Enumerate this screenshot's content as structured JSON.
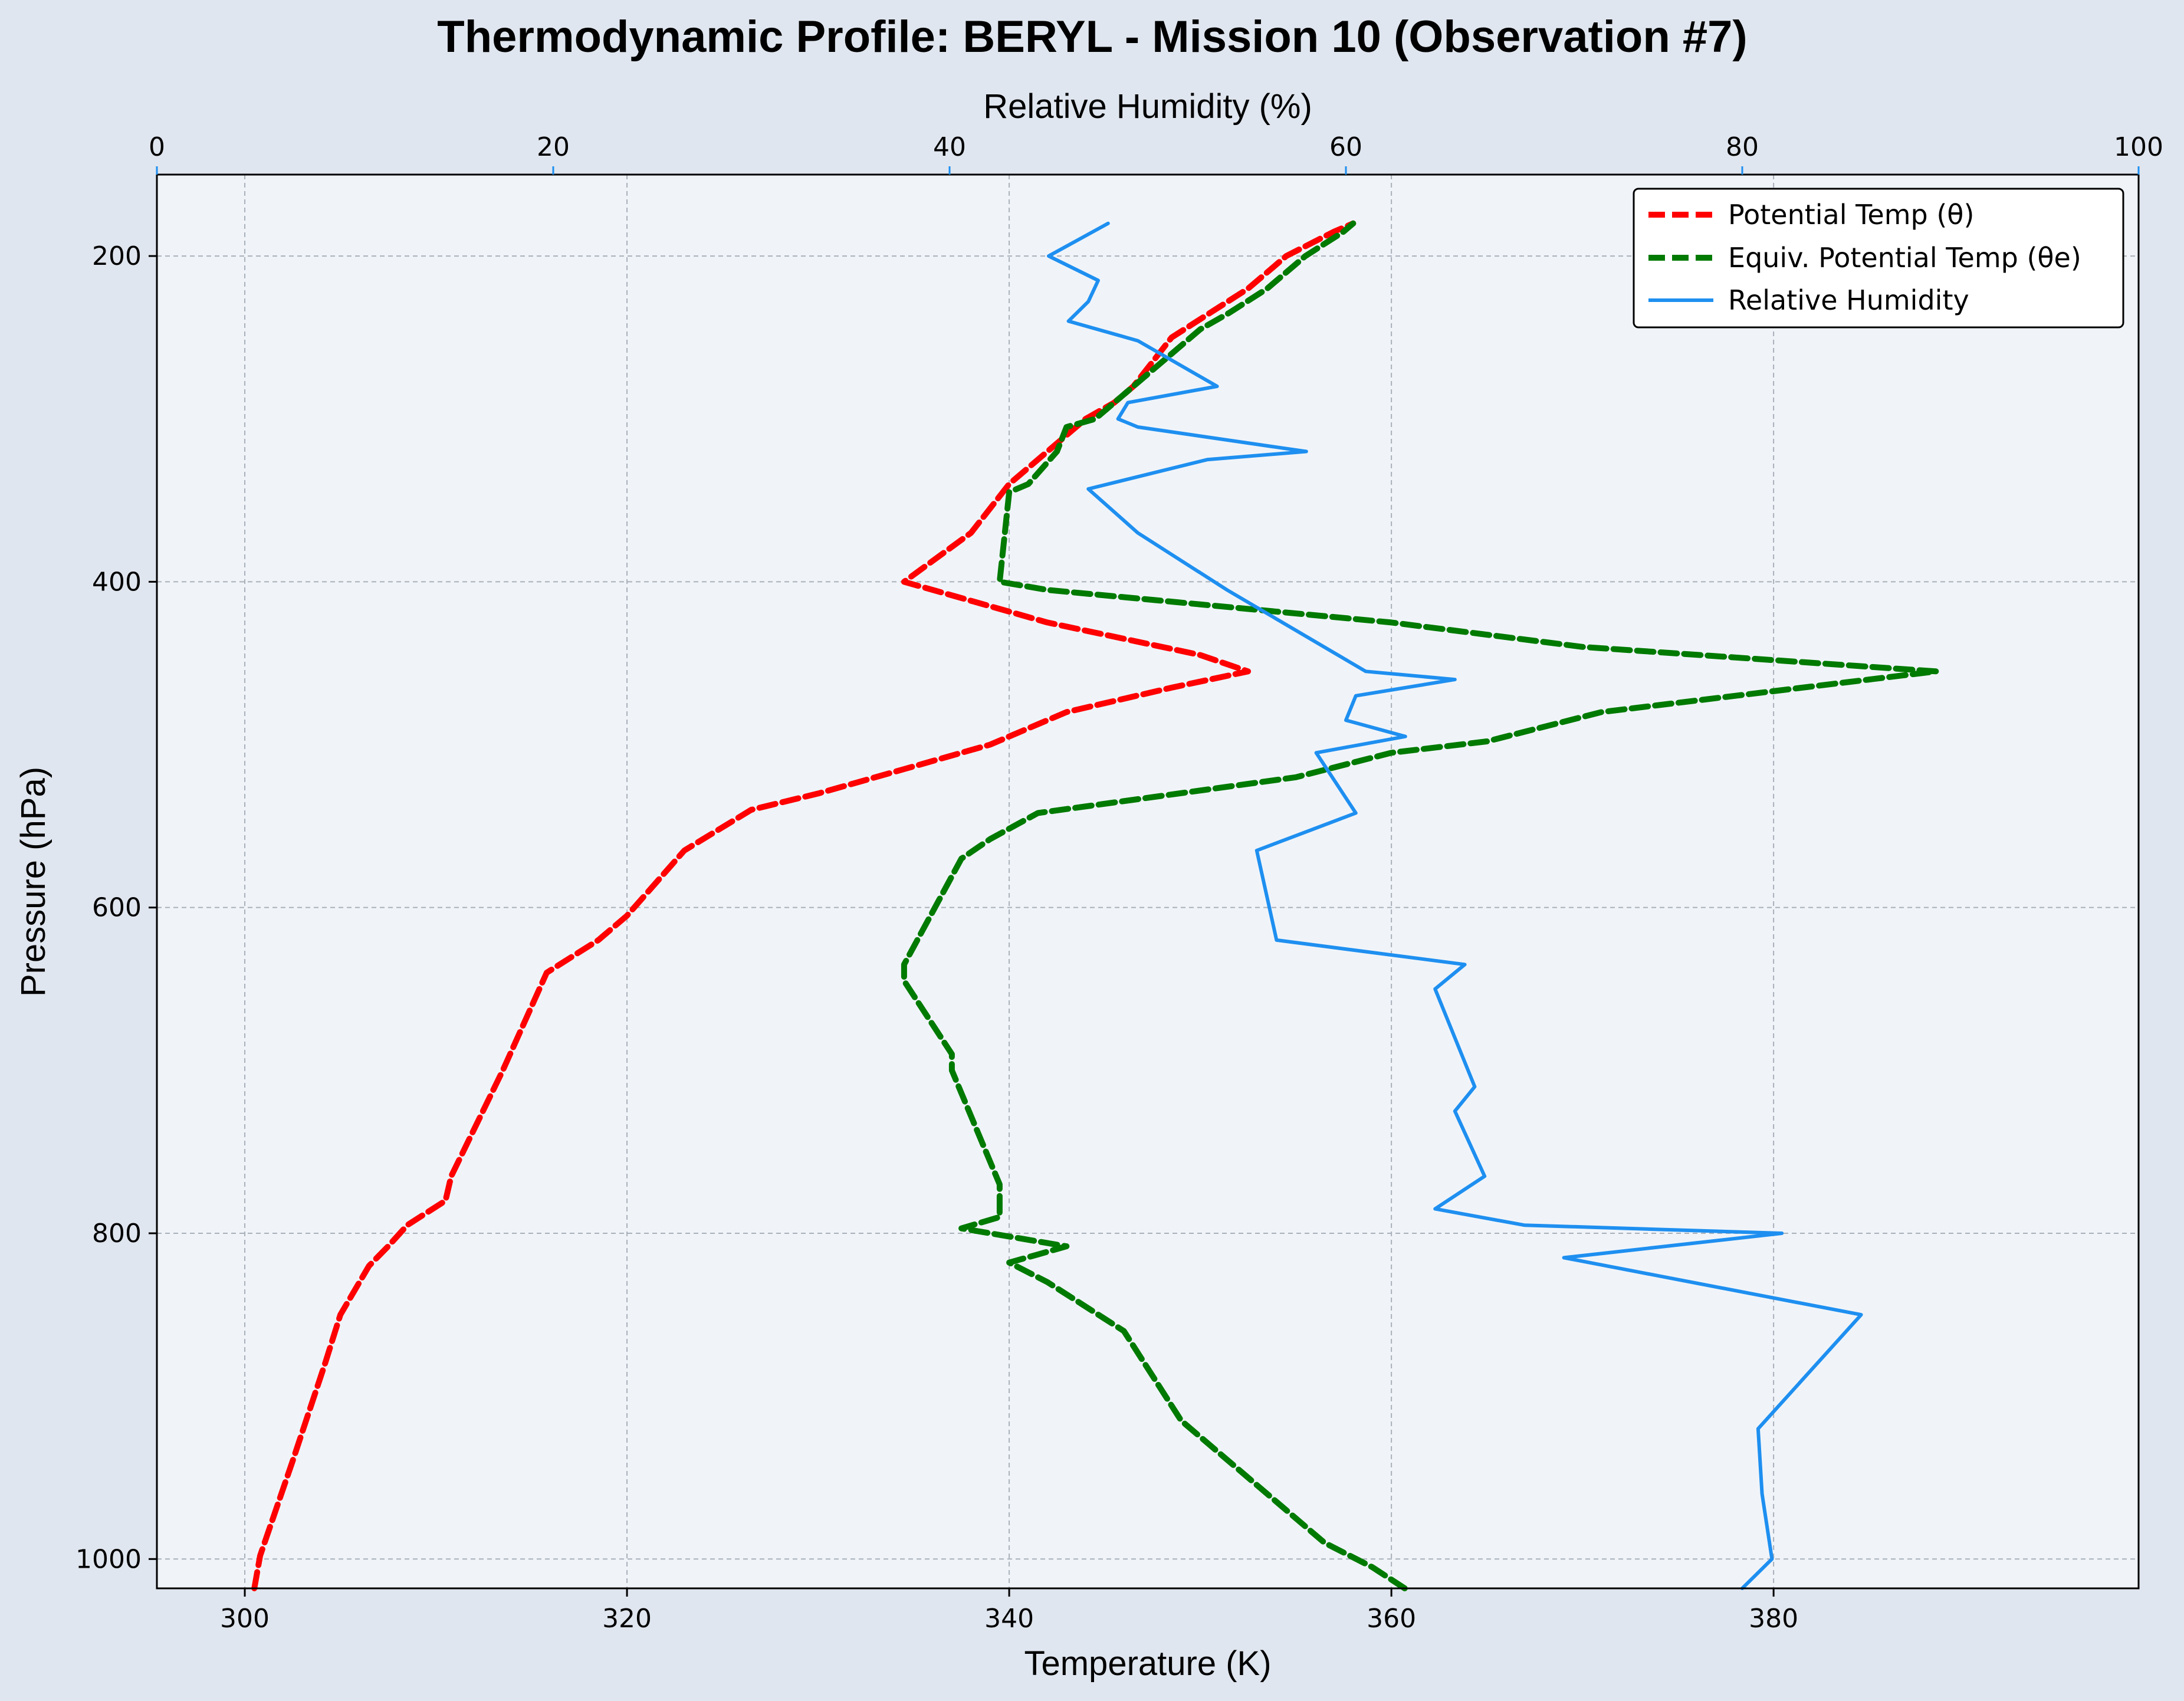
{
  "chart_data": {
    "type": "line",
    "title": "Thermodynamic Profile:  BERYL - Mission 10 (Observation #7)",
    "xlabel": "Temperature (K)",
    "ylabel": "Pressure (hPa)",
    "x2label": "Relative Humidity (%)",
    "xlim": [
      295.4,
      399.1
    ],
    "x2lim": [
      0,
      100
    ],
    "ylim": [
      1018,
      150
    ],
    "y_inverted": true,
    "grid": true,
    "legend_position": "upper right",
    "xticks": [
      300,
      320,
      340,
      360,
      380
    ],
    "x2ticks": [
      0,
      20,
      40,
      60,
      80,
      100
    ],
    "yticks": [
      200,
      400,
      600,
      800,
      1000
    ],
    "colors": {
      "theta": "#ff0000",
      "theta_e": "#007a00",
      "rh": "#1e8ff0",
      "rh_axis": "#1e8ff0"
    },
    "series": [
      {
        "name": "Potential Temp (θ)",
        "axis": "temperature",
        "style": "dashed",
        "color": "#ff0000",
        "points": [
          [
            300.5,
            1018
          ],
          [
            300.8,
            998
          ],
          [
            302.5,
            940
          ],
          [
            304.2,
            880
          ],
          [
            305.0,
            850
          ],
          [
            306.5,
            820
          ],
          [
            307.5,
            808
          ],
          [
            308.5,
            795
          ],
          [
            310.5,
            780
          ],
          [
            310.8,
            765
          ],
          [
            313.5,
            700
          ],
          [
            315.8,
            640
          ],
          [
            318.5,
            620
          ],
          [
            320.0,
            605
          ],
          [
            323.0,
            565
          ],
          [
            326.5,
            540
          ],
          [
            330.0,
            530
          ],
          [
            334.5,
            515
          ],
          [
            339.0,
            500
          ],
          [
            343.0,
            480
          ],
          [
            348.5,
            465
          ],
          [
            352.5,
            455
          ],
          [
            350.0,
            445
          ],
          [
            342.0,
            425
          ],
          [
            334.5,
            400
          ],
          [
            338.0,
            370
          ],
          [
            340.0,
            340
          ],
          [
            342.5,
            315
          ],
          [
            344.0,
            300
          ],
          [
            345.5,
            290
          ],
          [
            346.5,
            280
          ],
          [
            347.5,
            265
          ],
          [
            348.5,
            250
          ],
          [
            350.5,
            235
          ],
          [
            352.5,
            220
          ],
          [
            354.5,
            200
          ],
          [
            357.0,
            185
          ],
          [
            358.0,
            180
          ]
        ]
      },
      {
        "name": "Equiv. Potential Temp (θe)",
        "axis": "temperature",
        "style": "dashed",
        "color": "#007a00",
        "points": [
          [
            360.7,
            1018
          ],
          [
            359.0,
            1005
          ],
          [
            356.5,
            990
          ],
          [
            353.0,
            955
          ],
          [
            350.5,
            930
          ],
          [
            349.0,
            915
          ],
          [
            346.0,
            860
          ],
          [
            342.0,
            830
          ],
          [
            340.0,
            818
          ],
          [
            341.5,
            813
          ],
          [
            343.0,
            808
          ],
          [
            337.5,
            797
          ],
          [
            339.5,
            790
          ],
          [
            339.5,
            770
          ],
          [
            337.0,
            700
          ],
          [
            337.0,
            690
          ],
          [
            334.5,
            645
          ],
          [
            334.5,
            635
          ],
          [
            337.5,
            570
          ],
          [
            339.0,
            558
          ],
          [
            341.5,
            542
          ],
          [
            355.0,
            520
          ],
          [
            360.0,
            505
          ],
          [
            365.0,
            498
          ],
          [
            371.0,
            480
          ],
          [
            378.0,
            470
          ],
          [
            385.0,
            460
          ],
          [
            388.5,
            455
          ],
          [
            370.0,
            440
          ],
          [
            360.0,
            425
          ],
          [
            342.0,
            405
          ],
          [
            339.5,
            400
          ],
          [
            340.0,
            345
          ],
          [
            341.0,
            340
          ],
          [
            342.5,
            320
          ],
          [
            343.0,
            305
          ],
          [
            344.5,
            300
          ],
          [
            346.0,
            285
          ],
          [
            347.5,
            270
          ],
          [
            348.5,
            260
          ],
          [
            350.0,
            245
          ],
          [
            351.5,
            235
          ],
          [
            353.5,
            220
          ],
          [
            355.5,
            200
          ],
          [
            357.5,
            185
          ],
          [
            358.0,
            180
          ]
        ]
      },
      {
        "name": "Relative Humidity",
        "axis": "humidity",
        "style": "solid",
        "color": "#1e8ff0",
        "points": [
          [
            80.0,
            1018
          ],
          [
            81.5,
            1000
          ],
          [
            81.0,
            960
          ],
          [
            80.8,
            920
          ],
          [
            86.0,
            850
          ],
          [
            71.0,
            815
          ],
          [
            82.0,
            800
          ],
          [
            69.0,
            795
          ],
          [
            64.5,
            785
          ],
          [
            67.0,
            765
          ],
          [
            65.5,
            725
          ],
          [
            66.5,
            710
          ],
          [
            64.5,
            650
          ],
          [
            66.0,
            635
          ],
          [
            56.5,
            620
          ],
          [
            55.5,
            565
          ],
          [
            60.5,
            542
          ],
          [
            58.5,
            505
          ],
          [
            63.0,
            495
          ],
          [
            60.0,
            485
          ],
          [
            60.5,
            470
          ],
          [
            65.5,
            460
          ],
          [
            61.0,
            455
          ],
          [
            54.0,
            405
          ],
          [
            49.5,
            370
          ],
          [
            47.0,
            343
          ],
          [
            53.0,
            325
          ],
          [
            58.0,
            320
          ],
          [
            49.5,
            305
          ],
          [
            48.5,
            300
          ],
          [
            49.0,
            290
          ],
          [
            53.5,
            280
          ],
          [
            49.5,
            252
          ],
          [
            46.0,
            240
          ],
          [
            47.0,
            228
          ],
          [
            47.5,
            215
          ],
          [
            45.0,
            200
          ],
          [
            48.0,
            180
          ]
        ]
      }
    ]
  }
}
